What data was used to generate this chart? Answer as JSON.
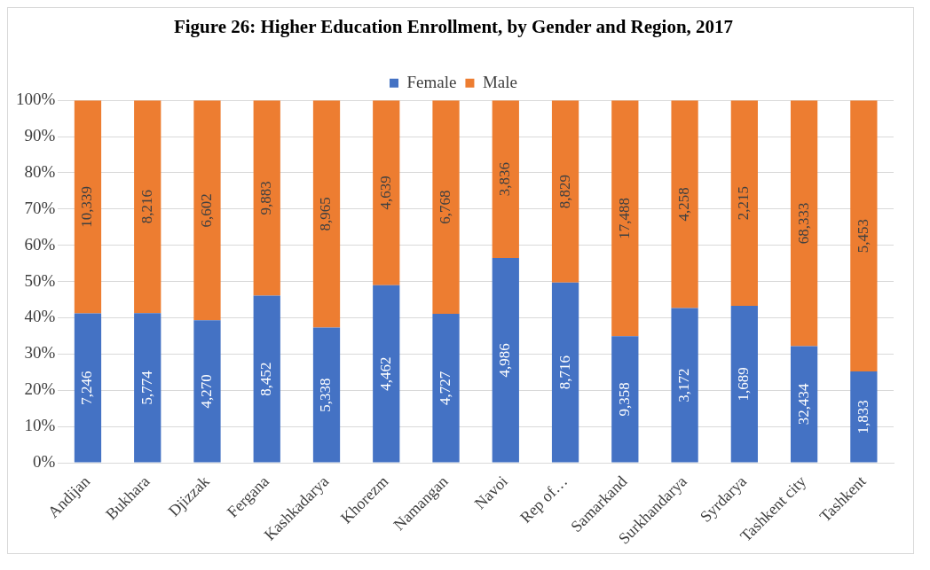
{
  "chart_data": {
    "type": "bar",
    "title": "Figure 26: Higher Education Enrollment, by Gender and Region, 2017",
    "stacked": true,
    "categories": [
      "Andijan",
      "Bukhara",
      "Djizzak",
      "Fergana",
      "Kashkadarya",
      "Khorezm",
      "Namangan",
      "Navoi",
      "Rep of…",
      "Samarkand",
      "Surkhandarya",
      "Syrdarya",
      "Tashkent city",
      "Tashkent"
    ],
    "series": [
      {
        "name": "Female",
        "color": "#4472c4",
        "values": [
          41.2,
          41.3,
          39.3,
          46.1,
          37.3,
          49.0,
          41.1,
          56.5,
          49.7,
          34.9,
          42.7,
          43.3,
          32.2,
          25.2
        ]
      },
      {
        "name": "Male",
        "color": "#ed7d31",
        "values": [
          58.8,
          58.7,
          60.7,
          53.9,
          62.7,
          51.0,
          58.9,
          43.5,
          50.3,
          65.1,
          57.3,
          56.7,
          67.8,
          74.8
        ]
      }
    ],
    "annotations": [
      "7,246",
      "10,339",
      "5,774",
      "8,216",
      "4,270",
      "6,602",
      "8,452",
      "9,883",
      "5,338",
      "8,965",
      "4,462",
      "4,639",
      "4,727",
      "6,768",
      "4,986",
      "3,836",
      "8,716",
      "8,829",
      "9,358",
      "17,488",
      "3,172",
      "4,258",
      "1,689",
      "2,215",
      "32,434",
      "68,333",
      "1,833",
      "5,453"
    ],
    "ylim": [
      0,
      100
    ],
    "yticks": [
      {
        "value": 0,
        "label": "0%"
      },
      {
        "value": 10,
        "label": "10%"
      },
      {
        "value": 20,
        "label": "20%"
      },
      {
        "value": 30,
        "label": "30%"
      },
      {
        "value": 40,
        "label": "40%"
      },
      {
        "value": 50,
        "label": "50%"
      },
      {
        "value": 60,
        "label": "60%"
      },
      {
        "value": 70,
        "label": "70%"
      },
      {
        "value": 80,
        "label": "80%"
      },
      {
        "value": 90,
        "label": "90%"
      },
      {
        "value": 100,
        "label": "100%"
      }
    ],
    "grid": "y",
    "legend": "top"
  }
}
